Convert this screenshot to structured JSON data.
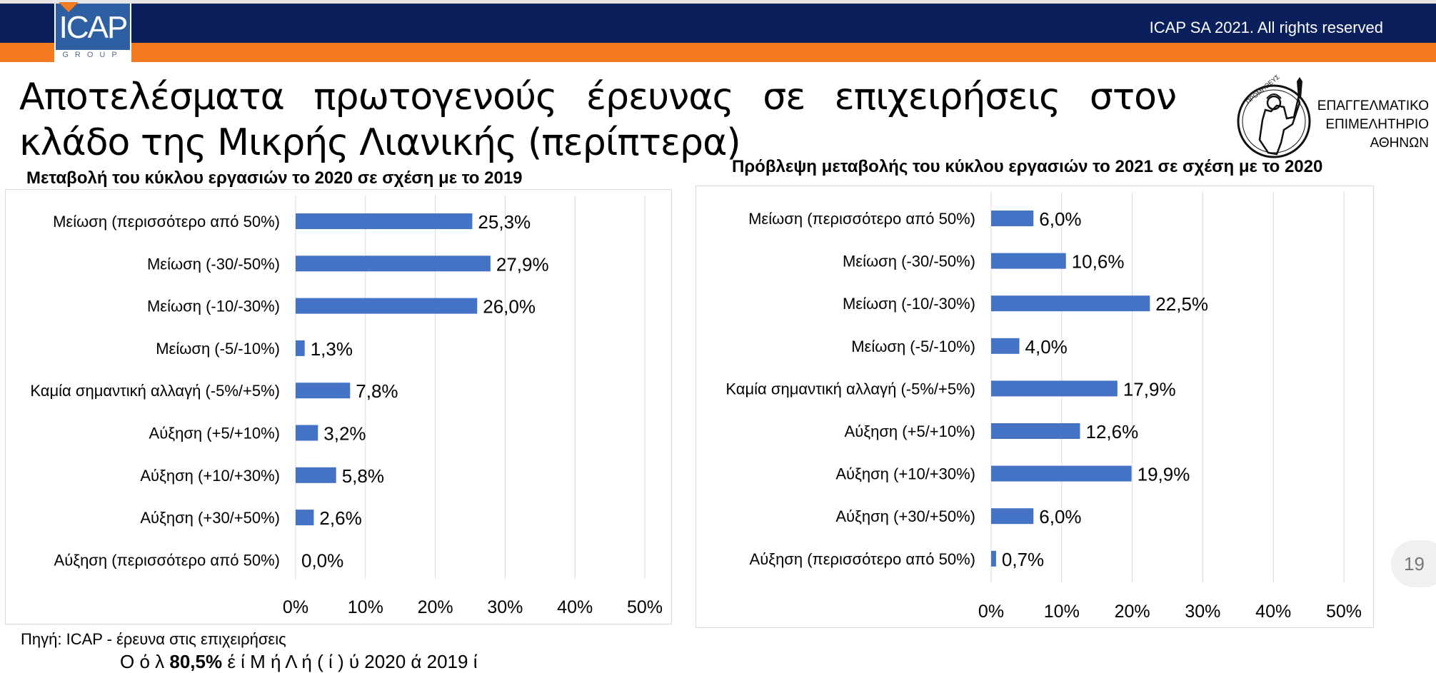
{
  "header": {
    "rights_text": "ICAP SA 2021.  All rights reserved",
    "logo_text": "ICAP",
    "logo_sub": "GROUP"
  },
  "title": "Αποτελέσματα πρωτογενούς έρευνας σε επιχειρήσεις στον κλάδο της Μικρής Λιανικής (περίπτερα)",
  "chamber": {
    "line1": "ΕΠΑΓΓΕΛΜΑΤΙΚΟ",
    "line2": "ΕΠΙΜΕΛΗΤΗΡΙΟ",
    "line3": "ΑΘΗΝΩΝ",
    "emblem_text": "ΠΡΟΜΗΘΕΥΣ"
  },
  "colors": {
    "bar": "#4472c4",
    "navy": "#0b1f5c",
    "orange": "#f47b20"
  },
  "chart_data": [
    {
      "type": "bar",
      "orientation": "horizontal",
      "title": "Μεταβολή του κύκλου εργασιών το 2020 σε σχέση με το 2019",
      "categories": [
        "Μείωση (περισσότερο από 50%)",
        "Μείωση (-30/-50%)",
        "Μείωση (-10/-30%)",
        "Μείωση (-5/-10%)",
        "Καμία σημαντική αλλαγή (-5%/+5%)",
        "Αύξηση (+5/+10%)",
        "Αύξηση (+10/+30%)",
        "Αύξηση (+30/+50%)",
        "Αύξηση (περισσότερο από 50%)"
      ],
      "values": [
        25.3,
        27.9,
        26.0,
        1.3,
        7.8,
        3.2,
        5.8,
        2.6,
        0.0
      ],
      "value_labels": [
        "25,3%",
        "27,9%",
        "26,0%",
        "1,3%",
        "7,8%",
        "3,2%",
        "5,8%",
        "2,6%",
        "0,0%"
      ],
      "xticks": [
        "0%",
        "10%",
        "20%",
        "30%",
        "40%",
        "50%"
      ],
      "xlim": [
        0,
        50
      ],
      "grid": true,
      "legend": "none"
    },
    {
      "type": "bar",
      "orientation": "horizontal",
      "title": "Πρόβλεψη μεταβολής του κύκλου εργασιών το 2021 σε σχέση με το 2020",
      "categories": [
        "Μείωση (περισσότερο από 50%)",
        "Μείωση (-30/-50%)",
        "Μείωση (-10/-30%)",
        "Μείωση (-5/-10%)",
        "Καμία σημαντική αλλαγή (-5%/+5%)",
        "Αύξηση (+5/+10%)",
        "Αύξηση (+10/+30%)",
        "Αύξηση (+30/+50%)",
        "Αύξηση (περισσότερο από 50%)"
      ],
      "values": [
        6.0,
        10.6,
        22.5,
        4.0,
        17.9,
        12.6,
        19.9,
        6.0,
        0.7
      ],
      "value_labels": [
        "6,0%",
        "10,6%",
        "22,5%",
        "4,0%",
        "17,9%",
        "12,6%",
        "19,9%",
        "6,0%",
        "0,7%"
      ],
      "xticks": [
        "0%",
        "10%",
        "20%",
        "30%",
        "40%",
        "50%"
      ],
      "xlim": [
        0,
        50
      ],
      "grid": true,
      "legend": "none"
    }
  ],
  "source": "Πηγή: ICAP - έρευνα στις επιχειρήσεις",
  "page_number": "19",
  "bottom_text": {
    "pre": "Ο ό λ  ",
    "bold": "80,5%",
    "post": "  έ  ί  Μ  ή Λ  ή (  ί  )       ύ   2020  ά   2019  ί"
  }
}
